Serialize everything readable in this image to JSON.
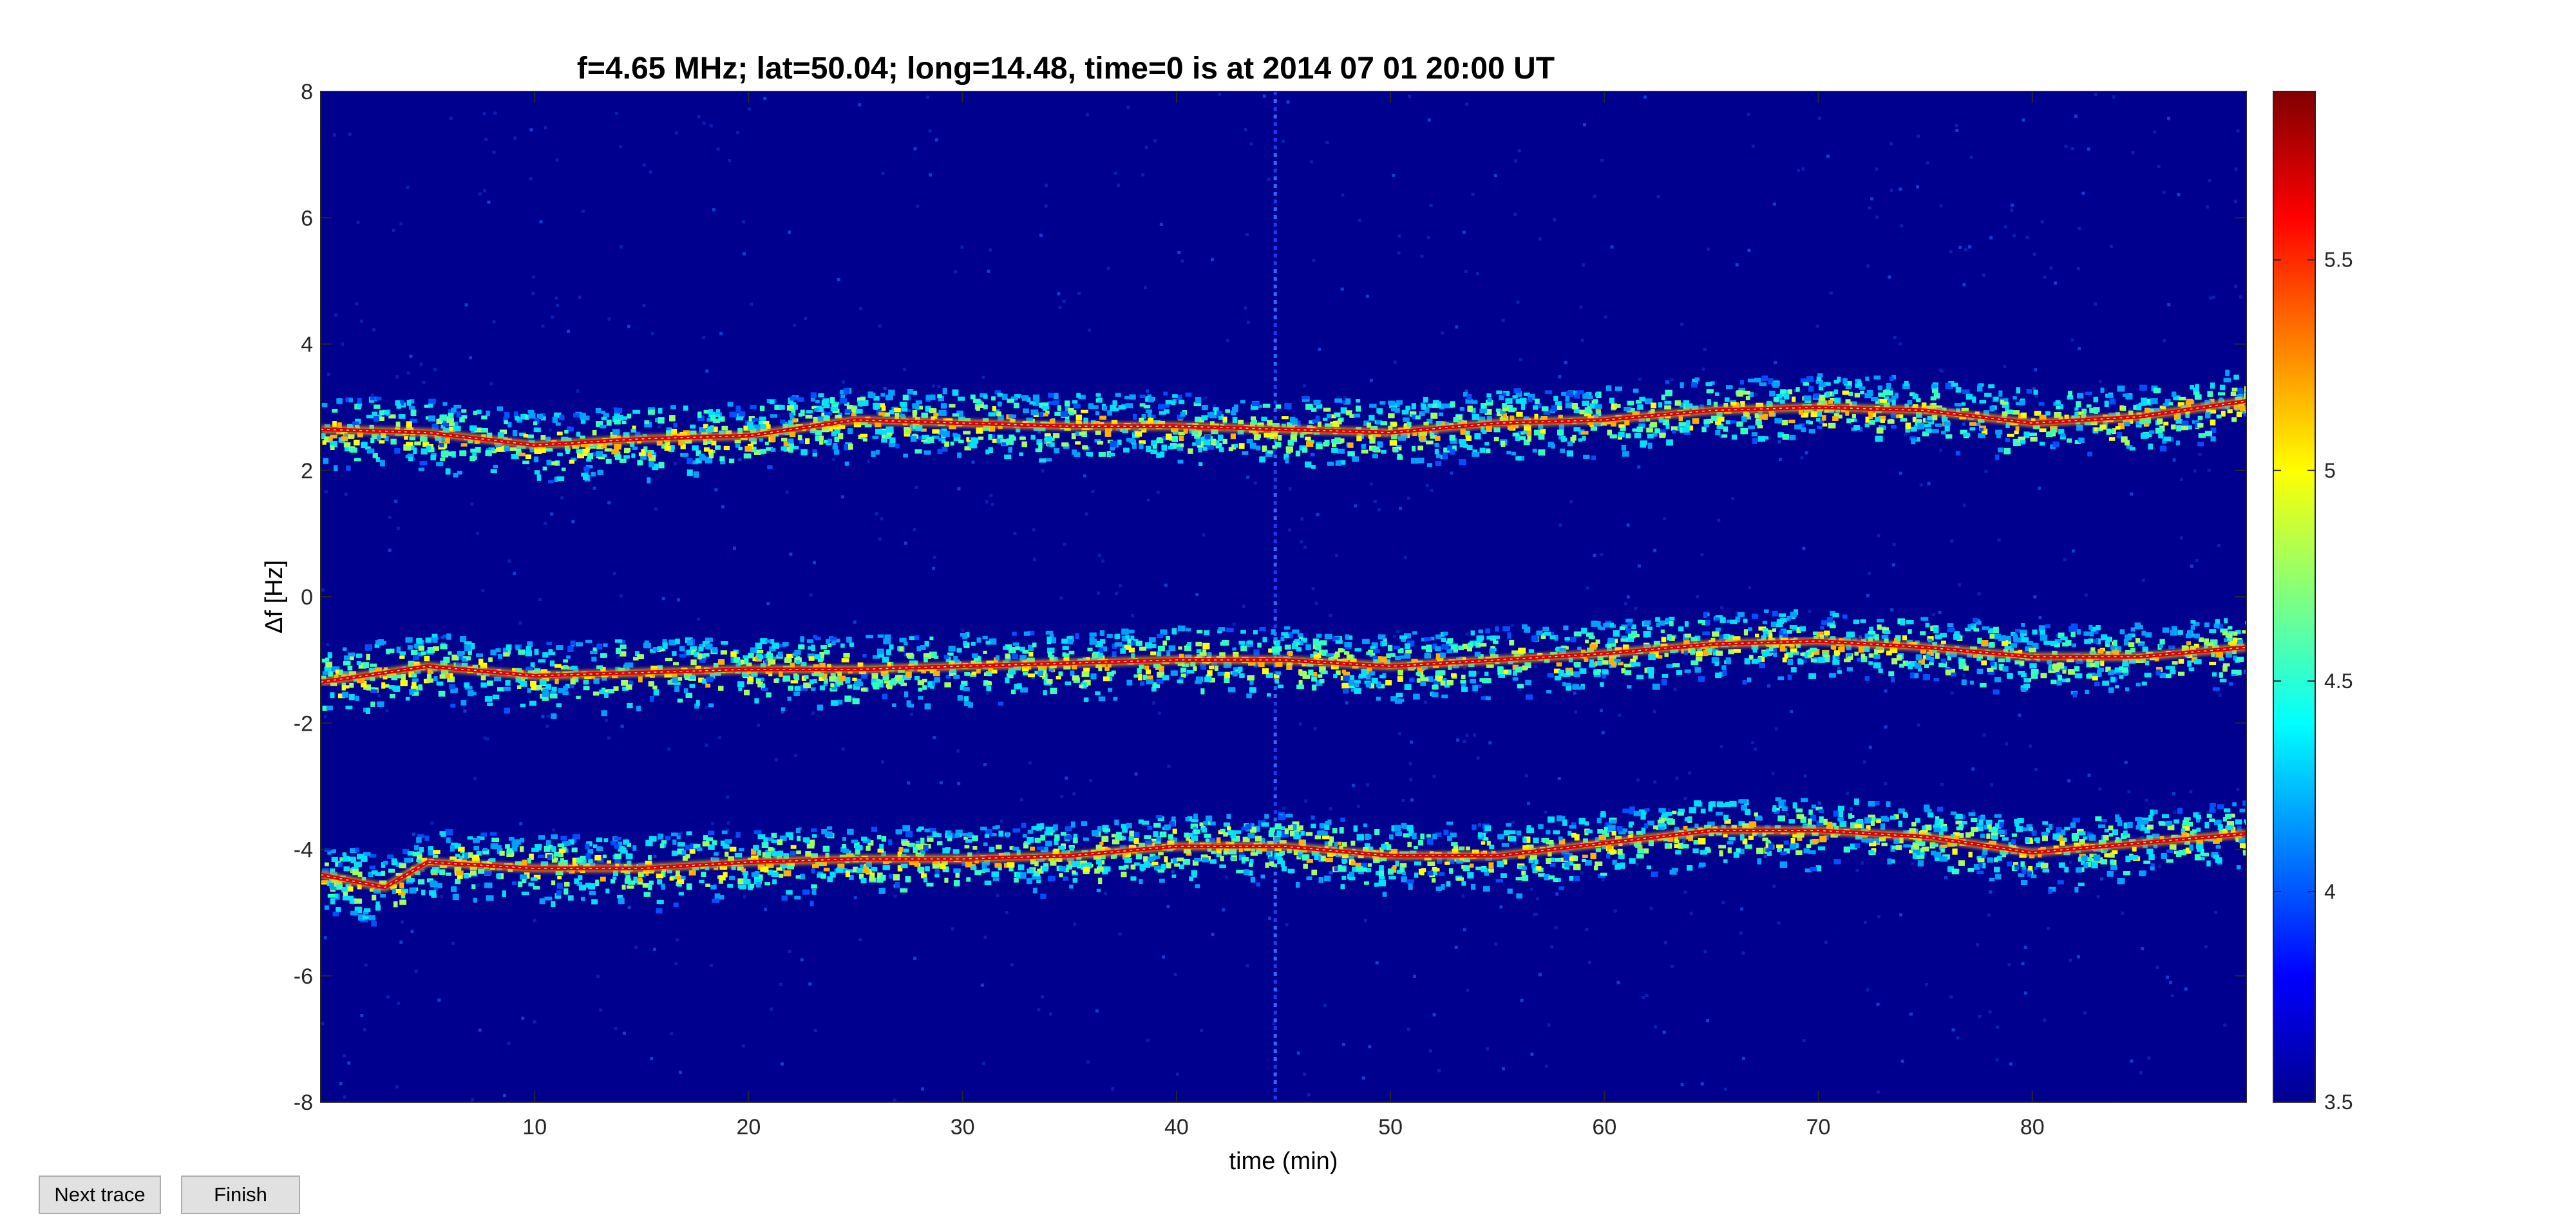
{
  "window": {
    "buttons": {
      "next_trace": "Next trace",
      "finish": "Finish"
    }
  },
  "chart_data": {
    "type": "heatmap",
    "title": "f=4.65 MHz;  lat=50.04; long=14.48, time=0 is at 2014 07 01 20:00 UT",
    "xlabel": "time (min)",
    "ylabel": "Δf [Hz]",
    "xlim": [
      0,
      90
    ],
    "ylim": [
      -8,
      8
    ],
    "xticks": [
      10,
      20,
      30,
      40,
      50,
      60,
      70,
      80
    ],
    "yticks": [
      8,
      6,
      4,
      2,
      0,
      -2,
      -4,
      -6,
      -8
    ],
    "colormap": "jet",
    "colorbar": {
      "clim": [
        3.5,
        5.9
      ],
      "ticks": [
        "5.5",
        "5",
        "4.5",
        "4",
        "3.5"
      ],
      "tick_values": [
        5.5,
        5.0,
        4.5,
        4.0,
        3.5
      ]
    },
    "background_color": "#00008f",
    "grid": false,
    "vertical_artifact_time_min": 44.6,
    "traces": [
      {
        "x": [
          0,
          5,
          10,
          15,
          20,
          25,
          30,
          35,
          40,
          45,
          50,
          55,
          60,
          65,
          70,
          75,
          80,
          85,
          90
        ],
        "y": [
          2.65,
          2.6,
          2.4,
          2.5,
          2.55,
          2.8,
          2.75,
          2.7,
          2.7,
          2.65,
          2.6,
          2.75,
          2.8,
          2.95,
          3.0,
          2.95,
          2.75,
          2.85,
          3.1
        ]
      },
      {
        "x": [
          0,
          5,
          10,
          15,
          20,
          25,
          30,
          35,
          40,
          45,
          50,
          55,
          60,
          65,
          70,
          75,
          80,
          85,
          90
        ],
        "y": [
          -1.35,
          -1.1,
          -1.25,
          -1.2,
          -1.15,
          -1.15,
          -1.1,
          -1.05,
          -1.0,
          -1.0,
          -1.1,
          -1.0,
          -0.9,
          -0.75,
          -0.7,
          -0.8,
          -0.95,
          -0.95,
          -0.8
        ]
      },
      {
        "x": [
          0,
          3,
          5,
          10,
          15,
          20,
          25,
          30,
          35,
          40,
          45,
          50,
          55,
          60,
          65,
          70,
          75,
          80,
          85,
          90
        ],
        "y": [
          -4.4,
          -4.6,
          -4.2,
          -4.3,
          -4.3,
          -4.2,
          -4.15,
          -4.15,
          -4.1,
          -3.95,
          -3.95,
          -4.1,
          -4.1,
          -3.9,
          -3.7,
          -3.7,
          -3.8,
          -4.05,
          -3.9,
          -3.75
        ]
      }
    ]
  }
}
